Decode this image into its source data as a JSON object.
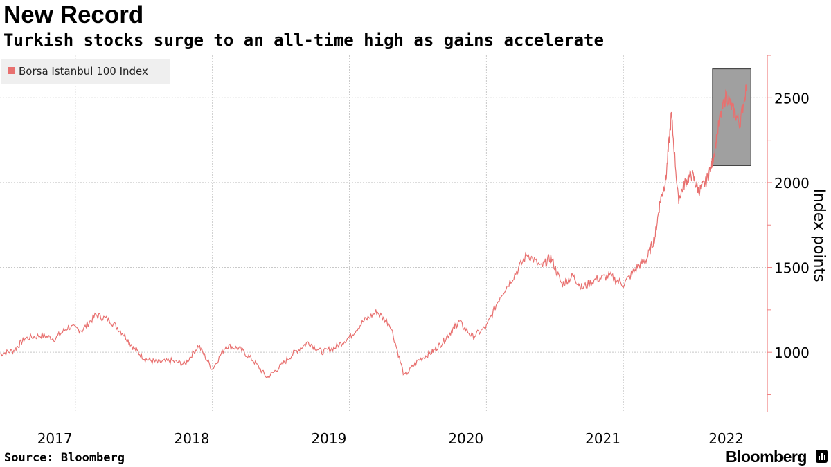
{
  "header": {
    "title": "New Record",
    "subtitle": "Turkish stocks surge to an all-time high as gains accelerate"
  },
  "footer": {
    "source": "Source: Bloomberg",
    "brand": "Bloomberg"
  },
  "colors": {
    "series": "#e8706f",
    "axis": "#f08080",
    "grid": "#c8c8c8",
    "highlight_fill": "#a0a0a0"
  },
  "chart_data": {
    "type": "line",
    "title": "New Record",
    "subtitle": "Turkish stocks surge to an all-time high as gains accelerate",
    "xlabel": "",
    "ylabel": "Index points",
    "xlim": [
      2016.6,
      2022.2
    ],
    "ylim": [
      650,
      2750
    ],
    "yticks": [
      1000,
      1500,
      2000,
      2500
    ],
    "ytick_labels": [
      "1000",
      "1500",
      "2000",
      "2500"
    ],
    "xtick_labels": [
      {
        "label": "2017",
        "x": 2017.0
      },
      {
        "label": "2018",
        "x": 2018.0
      },
      {
        "label": "2019",
        "x": 2019.0
      },
      {
        "label": "2020",
        "x": 2020.0
      },
      {
        "label": "2021",
        "x": 2021.0
      },
      {
        "label": "2022",
        "x": 2021.9
      }
    ],
    "xgrid": [
      2017.15,
      2018.15,
      2019.15,
      2020.15,
      2021.15
    ],
    "legend": {
      "label": "Borsa Istanbul 100 Index",
      "position": "top-left"
    },
    "highlight_box": {
      "x0": 2021.8,
      "x1": 2022.08,
      "y0": 2100,
      "y1": 2670
    },
    "series": [
      {
        "name": "Borsa Istanbul 100 Index",
        "x": [
          2016.6,
          2016.7,
          2016.78,
          2016.9,
          2017.0,
          2017.1,
          2017.2,
          2017.3,
          2017.4,
          2017.5,
          2017.58,
          2017.66,
          2017.75,
          2017.85,
          2017.95,
          2018.05,
          2018.15,
          2018.25,
          2018.35,
          2018.45,
          2018.55,
          2018.65,
          2018.75,
          2018.85,
          2018.95,
          2019.05,
          2019.15,
          2019.25,
          2019.35,
          2019.45,
          2019.55,
          2019.65,
          2019.75,
          2019.82,
          2019.9,
          2019.95,
          2020.05,
          2020.15,
          2020.25,
          2020.35,
          2020.45,
          2020.55,
          2020.62,
          2020.7,
          2020.78,
          2020.85,
          2020.95,
          2021.05,
          2021.15,
          2021.25,
          2021.32,
          2021.38,
          2021.42,
          2021.46,
          2021.5,
          2021.55,
          2021.6,
          2021.65,
          2021.7,
          2021.75,
          2021.8,
          2021.85,
          2021.9,
          2021.95,
          2022.0,
          2022.05
        ],
        "values": [
          990,
          1010,
          1080,
          1100,
          1080,
          1150,
          1130,
          1220,
          1190,
          1110,
          1020,
          960,
          940,
          950,
          930,
          1040,
          900,
          1040,
          1020,
          950,
          850,
          920,
          1000,
          1060,
          1000,
          1030,
          1090,
          1180,
          1240,
          1160,
          860,
          950,
          1000,
          1050,
          1130,
          1180,
          1090,
          1150,
          1330,
          1450,
          1580,
          1500,
          1560,
          1400,
          1450,
          1380,
          1430,
          1450,
          1400,
          1500,
          1550,
          1680,
          1900,
          2020,
          2400,
          1900,
          2000,
          2050,
          1950,
          2000,
          2120,
          2360,
          2520,
          2430,
          2350,
          2580
        ]
      }
    ]
  }
}
